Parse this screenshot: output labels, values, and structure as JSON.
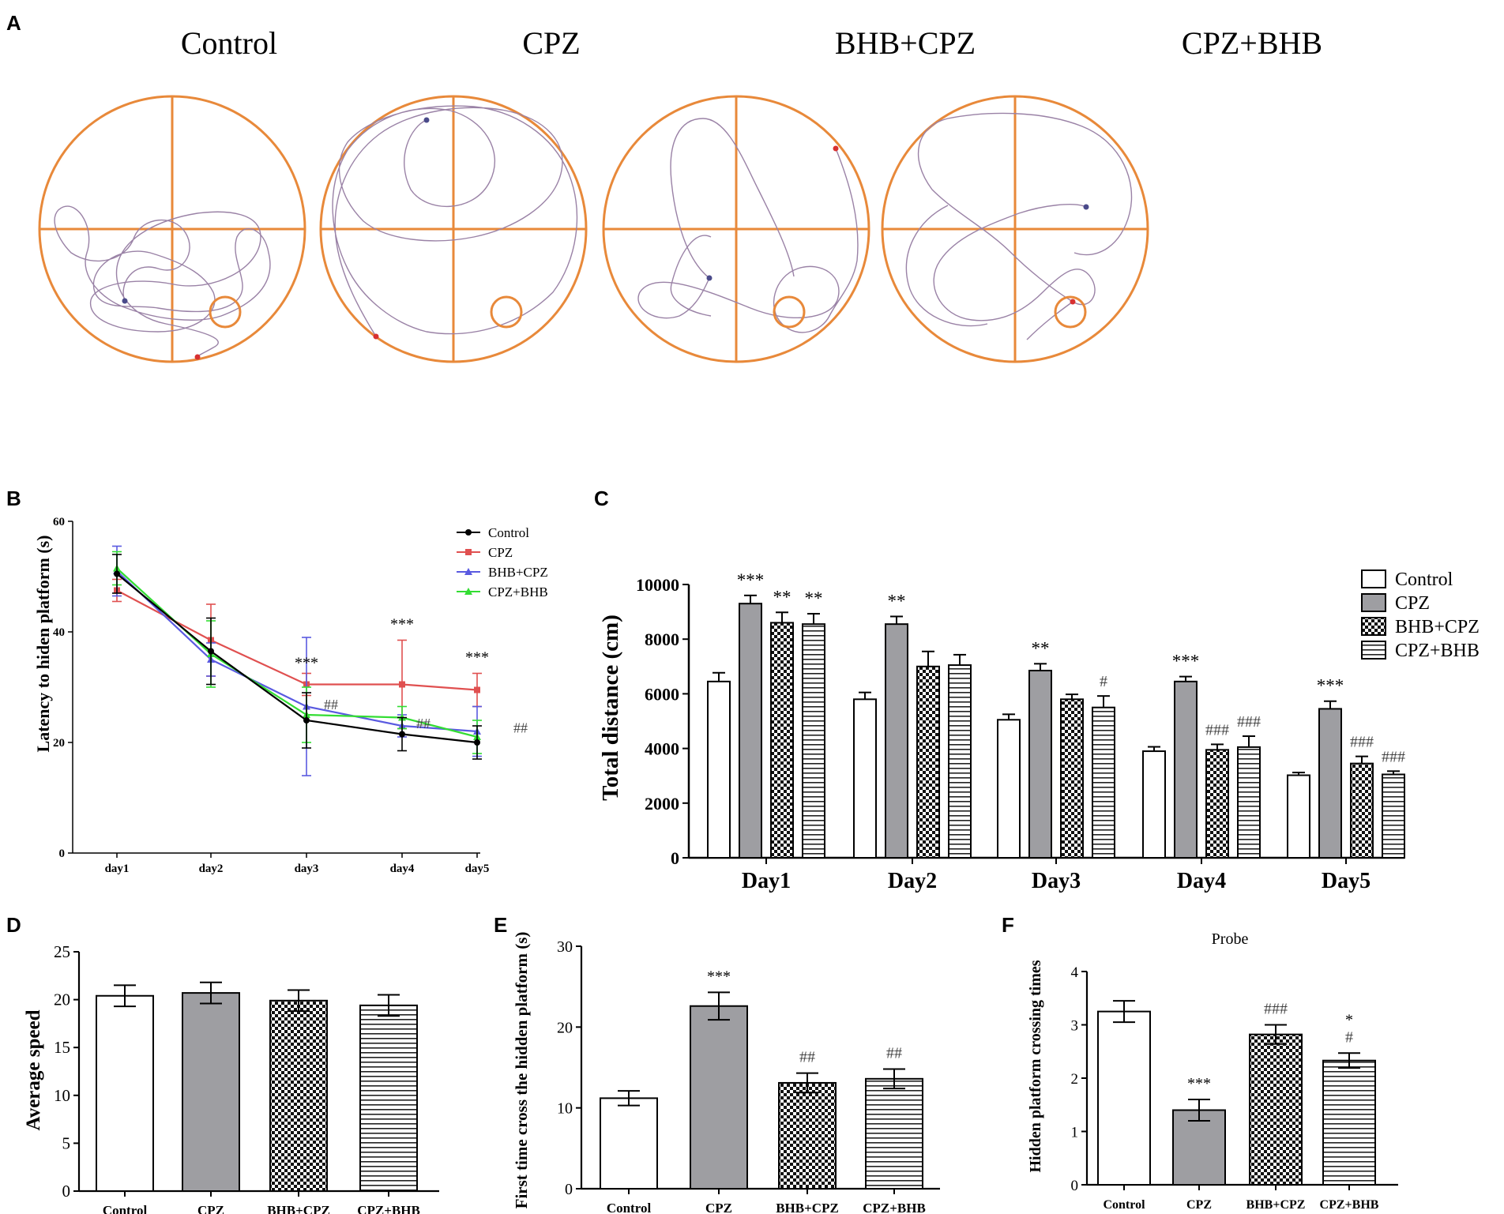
{
  "figure": {
    "panel_labels": [
      "A",
      "B",
      "C",
      "D",
      "E",
      "F"
    ]
  },
  "colors": {
    "pool": "#e8893a",
    "path": "#9a82a6",
    "start_dot": "#4a4a8a",
    "end_dot": "#d83030",
    "control_line": "#000000",
    "cpz_line": "#e05050",
    "bhbcpz_line": "#5a5ae0",
    "cpzbhb_line": "#33dd33",
    "cpz_fill": "#9e9ea2"
  },
  "panelA": {
    "titles": [
      "Control",
      "CPZ",
      "BHB+CPZ",
      "CPZ+BHB"
    ],
    "tracks": [
      {
        "group": "Control",
        "start_icon": "start-dot",
        "end_icon": "end-dot"
      },
      {
        "group": "CPZ",
        "start_icon": "start-dot",
        "end_icon": "end-dot"
      },
      {
        "group": "BHB+CPZ",
        "start_icon": "start-dot",
        "end_icon": "end-dot"
      },
      {
        "group": "CPZ+BHB",
        "start_icon": "start-dot",
        "end_icon": "end-dot"
      }
    ]
  },
  "chart_data": [
    {
      "id": "B",
      "type": "line",
      "ylabel": "Latency to hiden platform (s)",
      "xlabel": "",
      "categories": [
        "day1",
        "day2",
        "day3",
        "day4",
        "day5"
      ],
      "ylim": [
        0,
        60
      ],
      "yticks": [
        0,
        20,
        40,
        60
      ],
      "legend_position": "top-right",
      "series": [
        {
          "name": "Control",
          "marker": "circle",
          "values": [
            50.5,
            36.5,
            24,
            21.5,
            20
          ],
          "err": [
            3.5,
            6,
            5,
            3,
            3
          ]
        },
        {
          "name": "CPZ",
          "marker": "square",
          "values": [
            47.5,
            38.5,
            30.5,
            30.5,
            29.5
          ],
          "err": [
            2,
            6.5,
            2,
            8,
            3
          ]
        },
        {
          "name": "BHB+CPZ",
          "marker": "triangle",
          "values": [
            51,
            35,
            26.5,
            23,
            22
          ],
          "err": [
            4.5,
            3,
            12.5,
            2,
            4.5
          ]
        },
        {
          "name": "CPZ+BHB",
          "marker": "triangle",
          "values": [
            51.5,
            36,
            25,
            24.5,
            21
          ],
          "err": [
            3,
            6,
            5,
            2,
            3
          ]
        }
      ],
      "annotations": [
        {
          "x": "day3",
          "text": "***"
        },
        {
          "x": "day4",
          "text": "***"
        },
        {
          "x": "day5",
          "text": "***"
        },
        {
          "x": "day3",
          "text": "##"
        },
        {
          "x": "day4",
          "text": "##"
        },
        {
          "x": "day5",
          "text": "##"
        }
      ]
    },
    {
      "id": "C",
      "type": "bar",
      "ylabel": "Total distance (cm)",
      "categories": [
        "Day1",
        "Day2",
        "Day3",
        "Day4",
        "Day5"
      ],
      "ylim": [
        0,
        10000
      ],
      "yticks": [
        0,
        2000,
        4000,
        6000,
        8000,
        10000
      ],
      "legend_position": "top-right",
      "series": [
        {
          "name": "Control",
          "pattern": "white",
          "values": [
            6450,
            5800,
            5050,
            3900,
            3020
          ],
          "err": [
            320,
            250,
            200,
            160,
            100
          ]
        },
        {
          "name": "CPZ",
          "pattern": "gray",
          "values": [
            9300,
            8550,
            6850,
            6450,
            5450
          ],
          "err": [
            300,
            280,
            250,
            180,
            280
          ]
        },
        {
          "name": "BHB+CPZ",
          "pattern": "check",
          "values": [
            8600,
            7000,
            5800,
            3950,
            3450
          ],
          "err": [
            380,
            550,
            180,
            200,
            260
          ]
        },
        {
          "name": "CPZ+BHB",
          "pattern": "hstripe",
          "values": [
            8550,
            7050,
            5500,
            4050,
            3050
          ],
          "err": [
            380,
            380,
            420,
            400,
            120
          ]
        }
      ],
      "annotations": [
        {
          "category": "Day1",
          "series": "CPZ",
          "text": "***"
        },
        {
          "category": "Day1",
          "series": "BHB+CPZ",
          "text": "**"
        },
        {
          "category": "Day1",
          "series": "CPZ+BHB",
          "text": "**"
        },
        {
          "category": "Day2",
          "series": "CPZ",
          "text": "**"
        },
        {
          "category": "Day3",
          "series": "CPZ",
          "text": "**"
        },
        {
          "category": "Day3",
          "series": "CPZ+BHB",
          "text": "#"
        },
        {
          "category": "Day4",
          "series": "CPZ",
          "text": "***"
        },
        {
          "category": "Day4",
          "series": "BHB+CPZ",
          "text": "###"
        },
        {
          "category": "Day4",
          "series": "CPZ+BHB",
          "text": "###"
        },
        {
          "category": "Day5",
          "series": "CPZ",
          "text": "***"
        },
        {
          "category": "Day5",
          "series": "BHB+CPZ",
          "text": "###"
        },
        {
          "category": "Day5",
          "series": "CPZ+BHB",
          "text": "###"
        }
      ]
    },
    {
      "id": "D",
      "type": "bar",
      "ylabel": "Average speed",
      "categories": [
        "Control",
        "CPZ",
        "BHB+CPZ",
        "CPZ+BHB"
      ],
      "patterns": [
        "white",
        "gray",
        "check",
        "hstripe"
      ],
      "values": [
        20.4,
        20.7,
        19.9,
        19.4
      ],
      "err": [
        1.1,
        1.1,
        1.1,
        1.1
      ],
      "ylim": [
        0,
        25
      ],
      "yticks": [
        0,
        5,
        10,
        15,
        20,
        25
      ],
      "annotations": []
    },
    {
      "id": "E",
      "type": "bar",
      "ylabel": "First time cross the hidden platform (s)",
      "categories": [
        "Control",
        "CPZ",
        "BHB+CPZ",
        "CPZ+BHB"
      ],
      "patterns": [
        "white",
        "gray",
        "check",
        "hstripe"
      ],
      "values": [
        11.2,
        22.6,
        13.1,
        13.6
      ],
      "err": [
        0.9,
        1.7,
        1.2,
        1.2
      ],
      "ylim": [
        0,
        30
      ],
      "yticks": [
        0,
        10,
        20,
        30
      ],
      "annotations": [
        {
          "category": "CPZ",
          "text": "***"
        },
        {
          "category": "BHB+CPZ",
          "text": "##"
        },
        {
          "category": "CPZ+BHB",
          "text": "##"
        }
      ]
    },
    {
      "id": "F",
      "type": "bar",
      "title": "Probe",
      "ylabel": "Hidden platform crossing times",
      "categories": [
        "Control",
        "CPZ",
        "BHB+CPZ",
        "CPZ+BHB"
      ],
      "patterns": [
        "white",
        "gray",
        "check",
        "hstripe"
      ],
      "values": [
        3.25,
        1.4,
        2.82,
        2.33
      ],
      "err": [
        0.2,
        0.2,
        0.18,
        0.14
      ],
      "ylim": [
        0,
        4
      ],
      "yticks": [
        0,
        1,
        2,
        3,
        4
      ],
      "annotations": [
        {
          "category": "CPZ",
          "text": "***"
        },
        {
          "category": "BHB+CPZ",
          "text": "###"
        },
        {
          "category": "CPZ+BHB",
          "text": "*"
        },
        {
          "category": "CPZ+BHB",
          "text": "#"
        }
      ]
    }
  ]
}
